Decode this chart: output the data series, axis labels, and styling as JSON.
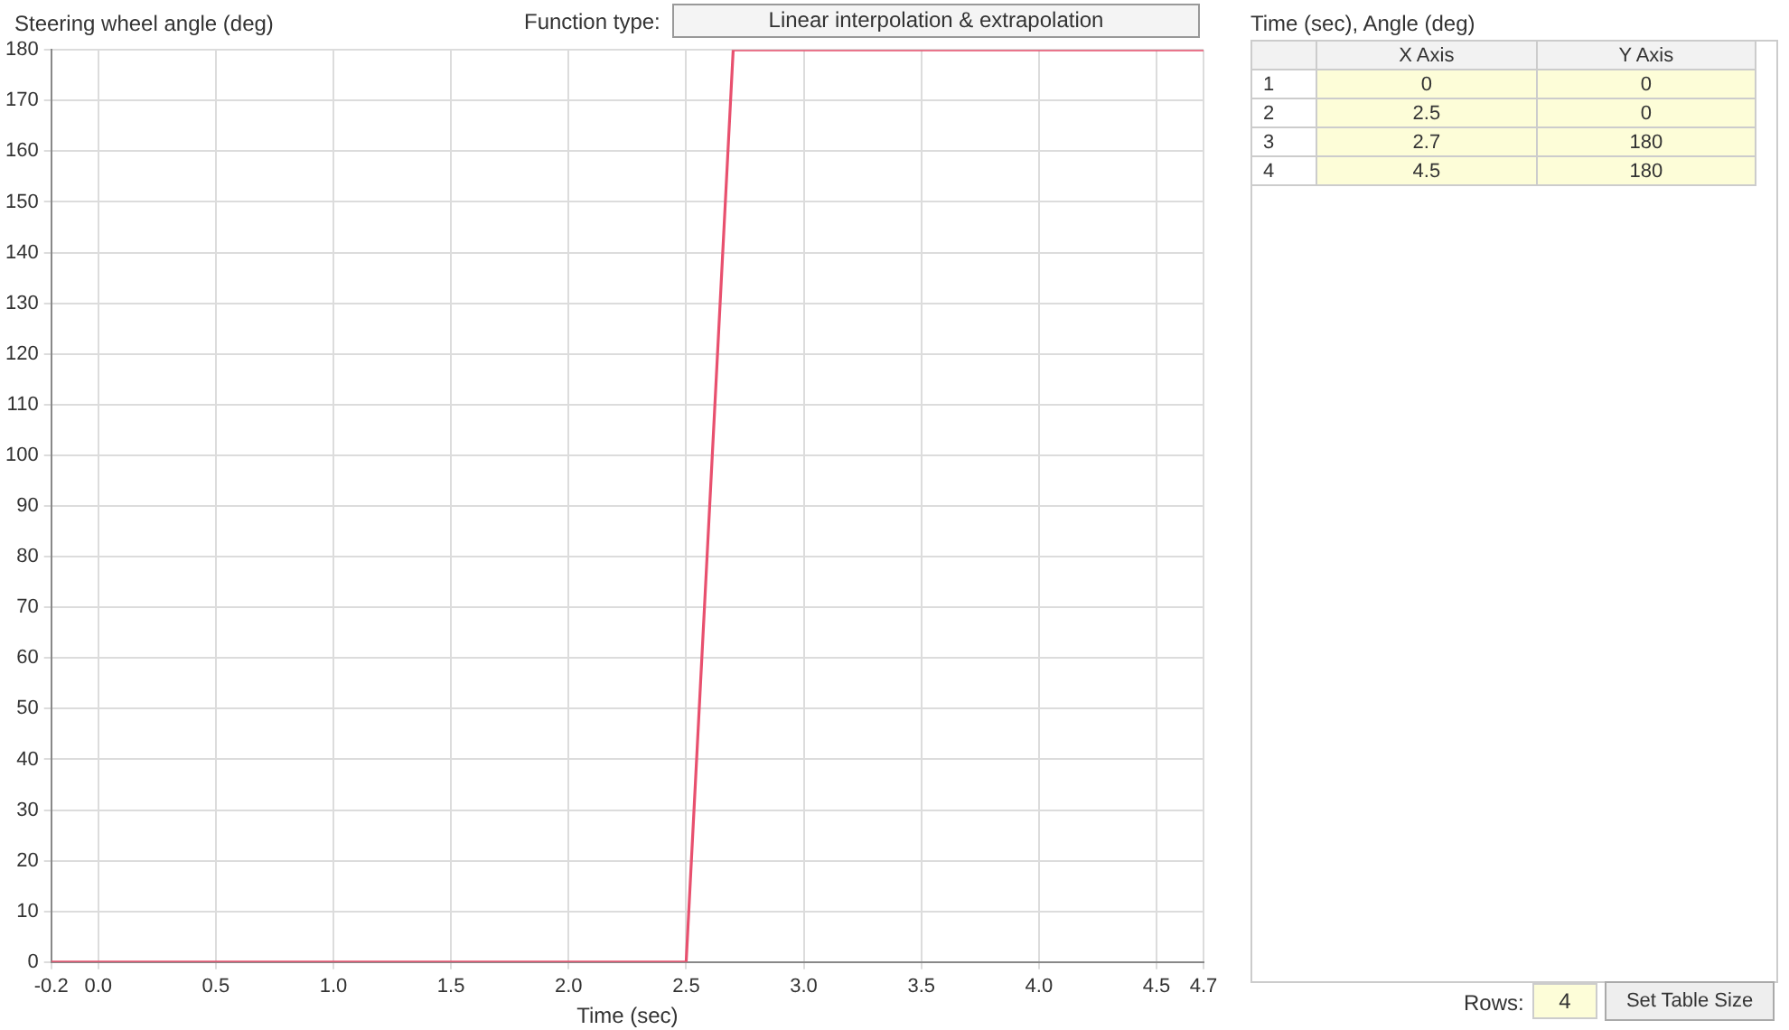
{
  "chart_data": {
    "type": "line",
    "ylabel": "Steering wheel angle (deg)",
    "xlabel": "Time (sec)",
    "x": [
      -0.2,
      0,
      2.5,
      2.7,
      4.5,
      4.7
    ],
    "series": [
      {
        "color": "#e8506e",
        "values": [
          0,
          0,
          0,
          180,
          180,
          180
        ]
      }
    ],
    "xlim": [
      -0.2,
      4.7
    ],
    "xticks": [
      -0.2,
      {
        "value": 0,
        "label": "0.0"
      },
      0.5,
      {
        "value": 1,
        "label": "1.0"
      },
      1.5,
      {
        "value": 2,
        "label": "2.0"
      },
      2.5,
      {
        "value": 3,
        "label": "3.0"
      },
      3.5,
      {
        "value": 4,
        "label": "4.0"
      },
      4.5,
      4.7
    ],
    "ylim": [
      0,
      180
    ],
    "yticks": [
      0,
      10,
      20,
      30,
      40,
      50,
      60,
      70,
      80,
      90,
      100,
      110,
      120,
      130,
      140,
      150,
      160,
      170,
      180
    ],
    "grid": true,
    "marker": "none",
    "line_style": "solid",
    "legend": false,
    "annotations": [
      "Function type:",
      "Linear interpolation & extrapolation",
      "Time (sec), Angle (deg)",
      "X Axis",
      "Y Axis",
      "1",
      "0",
      "0",
      "2",
      "2.5",
      "0",
      "3",
      "2.7",
      "180",
      "4",
      "4.5",
      "180",
      "Rows:",
      "4",
      "Set Table Size"
    ]
  }
}
